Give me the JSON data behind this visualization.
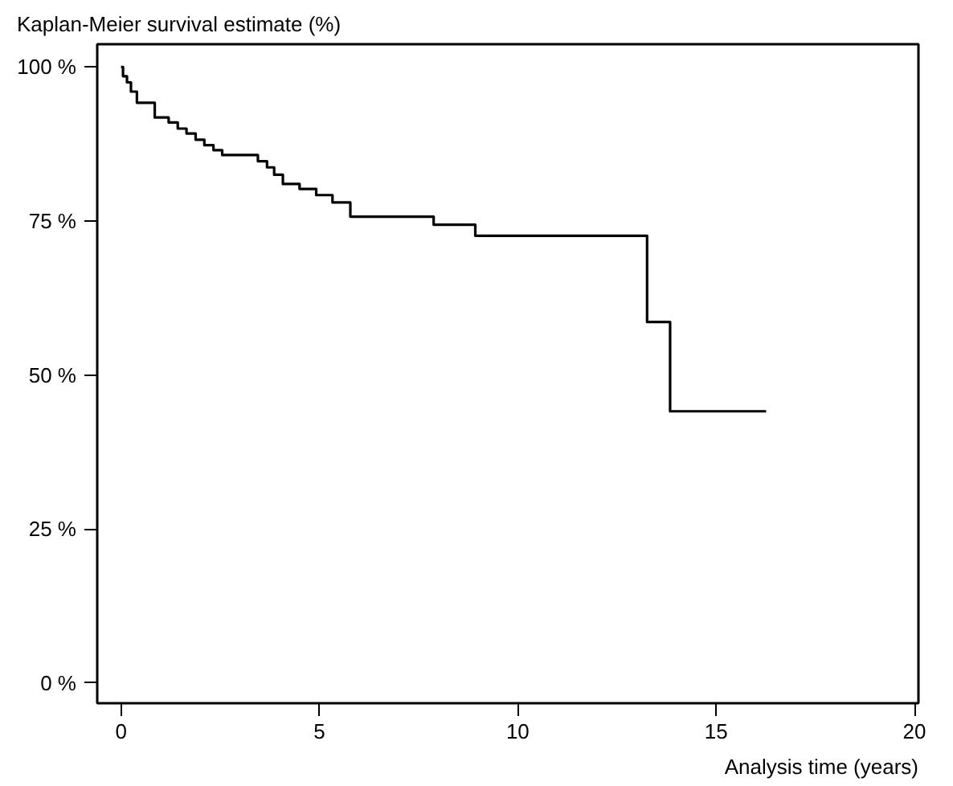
{
  "chart_data": {
    "type": "step",
    "ylabel": "Kaplan-Meier survival estimate (%)",
    "xlabel": "Analysis time (years)",
    "x": [
      0,
      0.05,
      0.15,
      0.25,
      0.4,
      0.85,
      1.2,
      1.43,
      1.65,
      1.88,
      2.1,
      2.33,
      2.55,
      3.45,
      3.68,
      3.86,
      4.08,
      4.5,
      4.92,
      5.33,
      5.78,
      7.88,
      8.93,
      13.26,
      13.84,
      16.26
    ],
    "values": [
      100,
      98.5,
      97.5,
      96,
      94.2,
      91.8,
      91,
      90,
      89.2,
      88.2,
      87.3,
      86.5,
      85.7,
      84.7,
      83.7,
      82.5,
      81,
      80.2,
      79.2,
      78,
      75.7,
      74.4,
      72.6,
      58.6,
      44.1,
      44.1
    ],
    "color": "#000000",
    "line_style": "solid",
    "marker": "none",
    "xlim": [
      -0.6,
      20.1
    ],
    "ylim": [
      -3.3,
      103.7
    ],
    "xticks": [
      0,
      5,
      10,
      15,
      20
    ],
    "yticks": [
      {
        "value": 0,
        "label": "0 %"
      },
      {
        "value": 25,
        "label": "25 %"
      },
      {
        "value": 50,
        "label": "50 %"
      },
      {
        "value": 75,
        "label": "75 %"
      },
      {
        "value": 100,
        "label": "100 %"
      }
    ],
    "grid": false
  }
}
